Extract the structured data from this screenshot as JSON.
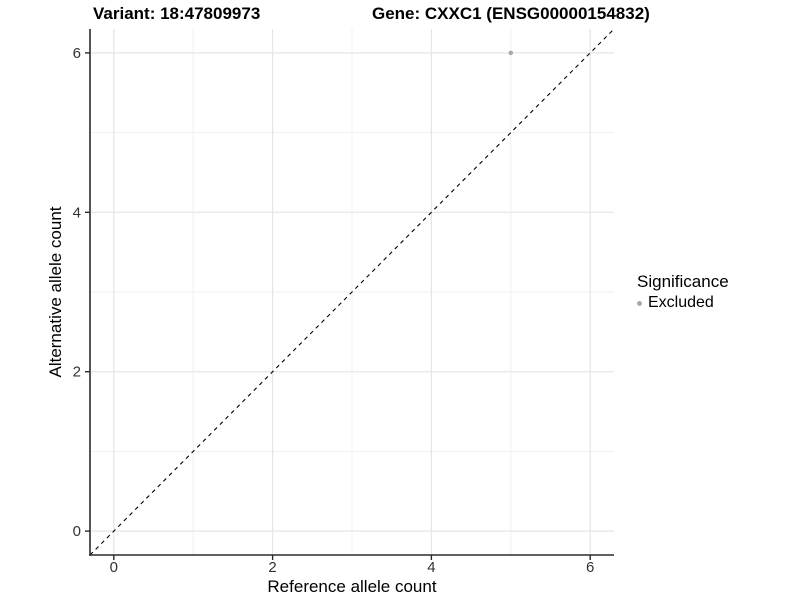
{
  "chart_data": {
    "type": "scatter",
    "title_left": "Variant: 18:47809973",
    "title_right": "Gene: CXXC1 (ENSG00000154832)",
    "xlabel": "Reference allele count",
    "ylabel": "Alternative allele count",
    "xlim": [
      -0.3,
      6.3
    ],
    "ylim": [
      -0.3,
      6.3
    ],
    "x_major_ticks": [
      0,
      2,
      4,
      6
    ],
    "y_major_ticks": [
      0,
      2,
      4,
      6
    ],
    "x_minor_ticks": [
      1,
      3,
      5
    ],
    "y_minor_ticks": [
      1,
      3,
      5
    ],
    "grid": "major and minor gridlines on, white background",
    "series": [
      {
        "name": "Excluded",
        "color": "#a9a9a9",
        "points": [
          {
            "x": 5,
            "y": 6
          }
        ]
      }
    ],
    "reference_line": {
      "description": "identity line y = x",
      "slope": 1,
      "intercept": 0,
      "style": "dashed",
      "color": "#000000"
    },
    "legend": {
      "title": "Significance",
      "position": "right",
      "items": [
        {
          "label": "Excluded",
          "color": "#a9a9a9"
        }
      ]
    }
  },
  "colors": {
    "background": "#ffffff",
    "grid_major": "#e5e5e5",
    "grid_minor": "#efefef",
    "axis_line": "#2b2b2b",
    "tick_mark": "#2b2b2b",
    "tick_label": "#333333",
    "text": "#000000",
    "point": "#a9a9a9",
    "reference_line": "#000000"
  }
}
